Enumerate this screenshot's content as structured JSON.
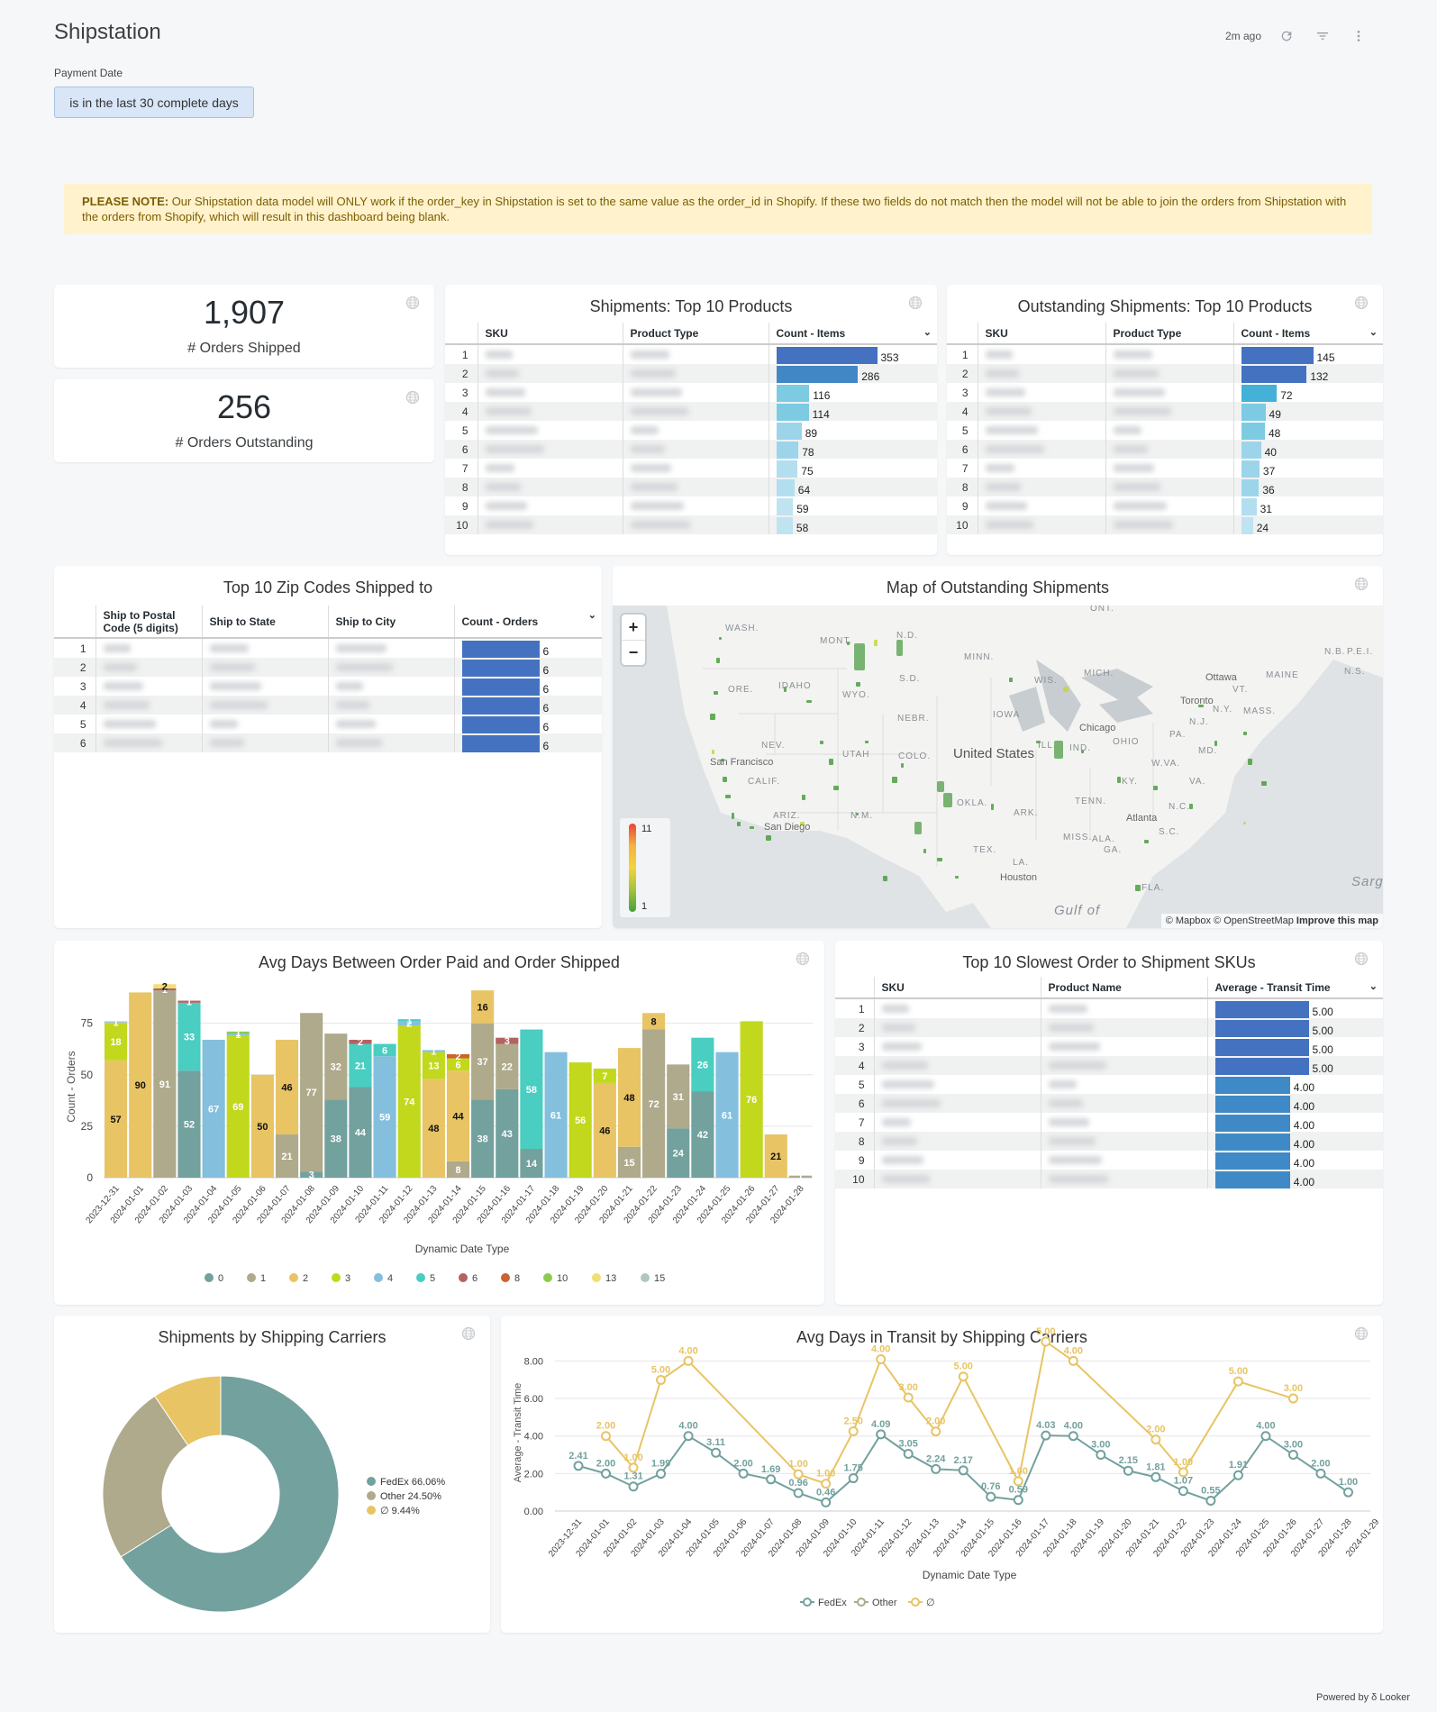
{
  "header": {
    "title": "Shipstation",
    "last_refreshed": "2m ago",
    "icons": [
      "refresh-icon",
      "filter-icon",
      "more-vert-icon"
    ]
  },
  "filters": {
    "payment_date": {
      "label": "Payment Date",
      "value": "is in the last 30 complete days"
    }
  },
  "note": {
    "bold": "PLEASE NOTE:",
    "text": " Our Shipstation data model will ONLY work if the order_key in Shipstation is set to the same value as the order_id in Shopify. If these two fields do not match then the model will not be able to join the orders from Shipstation with the orders from Shopify, which will result in this dashboard being blank."
  },
  "kpis": [
    {
      "value": "1,907",
      "label": "# Orders Shipped"
    },
    {
      "value": "256",
      "label": "# Orders Outstanding"
    }
  ],
  "shipments_top10": {
    "title": "Shipments: Top 10 Products",
    "columns": [
      "SKU",
      "Product Type",
      "Count - Items"
    ],
    "rows": [
      {
        "idx": "1",
        "value": 353
      },
      {
        "idx": "2",
        "value": 286
      },
      {
        "idx": "3",
        "value": 116
      },
      {
        "idx": "4",
        "value": 114
      },
      {
        "idx": "5",
        "value": 89
      },
      {
        "idx": "6",
        "value": 78
      },
      {
        "idx": "7",
        "value": 75
      },
      {
        "idx": "8",
        "value": 64
      },
      {
        "idx": "9",
        "value": 59
      },
      {
        "idx": "10",
        "value": 58
      }
    ]
  },
  "outstanding_top10": {
    "title": "Outstanding Shipments: Top 10 Products",
    "columns": [
      "SKU",
      "Product Type",
      "Count - Items"
    ],
    "rows": [
      {
        "idx": "1",
        "value": 145
      },
      {
        "idx": "2",
        "value": 132
      },
      {
        "idx": "3",
        "value": 72
      },
      {
        "idx": "4",
        "value": 49
      },
      {
        "idx": "5",
        "value": 48
      },
      {
        "idx": "6",
        "value": 40
      },
      {
        "idx": "7",
        "value": 37
      },
      {
        "idx": "8",
        "value": 36
      },
      {
        "idx": "9",
        "value": 31
      },
      {
        "idx": "10",
        "value": 24
      }
    ]
  },
  "zip_codes": {
    "title": "Top 10 Zip Codes Shipped to",
    "columns": [
      "Ship to Postal Code (5 digits)",
      "Ship to State",
      "Ship to City",
      "Count - Orders"
    ],
    "rows": [
      {
        "idx": "1",
        "value": 6
      },
      {
        "idx": "2",
        "value": 6
      },
      {
        "idx": "3",
        "value": 6
      },
      {
        "idx": "4",
        "value": 6
      },
      {
        "idx": "5",
        "value": 6
      },
      {
        "idx": "6",
        "value": 6
      }
    ]
  },
  "map": {
    "title": "Map of Outstanding Shipments",
    "zoom_in": "+",
    "zoom_out": "−",
    "legend_max": "11",
    "legend_min": "1",
    "country_label": "United States",
    "attribution": "© Mapbox © OpenStreetMap",
    "improve_link": "Improve this map",
    "state_labels": [
      "WASH.",
      "MONT.",
      "N.D.",
      "MINN.",
      "ORE.",
      "IDAHO",
      "WYO.",
      "S.D.",
      "WIS.",
      "MICH.",
      "NEBR.",
      "IOWA",
      "NEV.",
      "UTAH",
      "COLO.",
      "ILL.",
      "IND.",
      "OHIO",
      "PA.",
      "N.Y.",
      "MASS.",
      "MAINE",
      "VT.",
      "CALIF.",
      "KY.",
      "W.VA.",
      "VA.",
      "MD.",
      "N.J.",
      "ARIZ.",
      "N.M.",
      "OKLA.",
      "ARK.",
      "TENN.",
      "N.C.",
      "S.C.",
      "MISS.",
      "ALA.",
      "GA.",
      "TEX.",
      "LA.",
      "FLA.",
      "ONT.",
      "N.B.",
      "P.E.I.",
      "N.S."
    ],
    "cities": [
      "Ottawa",
      "Toronto",
      "Chicago",
      "San Francisco",
      "San Diego",
      "Atlanta",
      "Houston"
    ],
    "water_labels": [
      "Gulf of",
      "Sarg"
    ]
  },
  "chart_data": [
    {
      "type": "bar",
      "stacked": true,
      "title": "Avg Days Between Order Paid and Order Shipped",
      "xlabel": "Dynamic Date Type",
      "ylabel": "Count - Orders",
      "ylim": [
        0,
        95
      ],
      "yticks": [
        0,
        25,
        50,
        75
      ],
      "legend_position": "bottom",
      "categories": [
        "2023-12-31",
        "2024-01-01",
        "2024-01-02",
        "2024-01-03",
        "2024-01-04",
        "2024-01-05",
        "2024-01-06",
        "2024-01-07",
        "2024-01-08",
        "2024-01-09",
        "2024-01-10",
        "2024-01-11",
        "2024-01-12",
        "2024-01-13",
        "2024-01-14",
        "2024-01-15",
        "2024-01-16",
        "2024-01-17",
        "2024-01-18",
        "2024-01-19",
        "2024-01-20",
        "2024-01-21",
        "2024-01-22",
        "2024-01-23",
        "2024-01-24",
        "2024-01-25",
        "2024-01-26",
        "2024-01-27",
        "2024-01-28"
      ],
      "series": [
        {
          "name": "0",
          "color": "#72a19e",
          "values": [
            0,
            0,
            0,
            52,
            0,
            0,
            0,
            0,
            3,
            38,
            44,
            0,
            0,
            0,
            0,
            38,
            43,
            14,
            0,
            0,
            0,
            0,
            0,
            24,
            42,
            0,
            0,
            0,
            0
          ]
        },
        {
          "name": "1",
          "color": "#aeaa8b",
          "values": [
            0,
            0,
            91,
            0,
            0,
            0,
            0,
            21,
            77,
            32,
            0,
            0,
            0,
            0,
            8,
            37,
            22,
            0,
            0,
            0,
            0,
            15,
            72,
            31,
            0,
            0,
            0,
            0,
            1
          ]
        },
        {
          "name": "2",
          "color": "#e8c465",
          "values": [
            57,
            90,
            0,
            0,
            0,
            0,
            50,
            46,
            0,
            0,
            0,
            0,
            0,
            48,
            44,
            16,
            0,
            0,
            0,
            0,
            46,
            48,
            8,
            0,
            0,
            0,
            0,
            21,
            0
          ]
        },
        {
          "name": "3",
          "color": "#c1d81d",
          "values": [
            18,
            0,
            0,
            0,
            0,
            69,
            0,
            0,
            0,
            0,
            0,
            0,
            74,
            13,
            6,
            0,
            0,
            0,
            0,
            56,
            7,
            0,
            0,
            0,
            0,
            0,
            76,
            0,
            0
          ]
        },
        {
          "name": "4",
          "color": "#84bfdd",
          "values": [
            0,
            0,
            0,
            0,
            67,
            1,
            0,
            0,
            0,
            0,
            0,
            59,
            2,
            1,
            0,
            0,
            0,
            0,
            61,
            0,
            0,
            0,
            0,
            0,
            0,
            61,
            0,
            0,
            0
          ]
        },
        {
          "name": "5",
          "color": "#49cec1",
          "values": [
            0,
            0,
            0,
            33,
            0,
            0,
            0,
            0,
            0,
            0,
            21,
            6,
            1,
            0,
            0,
            0,
            0,
            58,
            0,
            0,
            0,
            0,
            0,
            0,
            26,
            0,
            0,
            0,
            0
          ]
        },
        {
          "name": "6",
          "color": "#b46261",
          "values": [
            0,
            0,
            1,
            1,
            0,
            0,
            0,
            0,
            0,
            0,
            2,
            0,
            0,
            0,
            0,
            0,
            3,
            0,
            0,
            0,
            0,
            0,
            0,
            0,
            0,
            0,
            0,
            0,
            0
          ]
        },
        {
          "name": "8",
          "color": "#cd6130",
          "values": [
            0,
            0,
            0,
            0,
            0,
            0,
            0,
            0,
            0,
            0,
            0,
            0,
            0,
            0,
            2,
            0,
            0,
            0,
            0,
            0,
            0,
            0,
            0,
            0,
            0,
            0,
            0,
            0,
            0
          ]
        },
        {
          "name": "10",
          "color": "#8bcc4d",
          "values": [
            0,
            0,
            0,
            0,
            0,
            1,
            0,
            0,
            0,
            0,
            0,
            0,
            0,
            0,
            0,
            0,
            0,
            0,
            0,
            0,
            0,
            0,
            0,
            0,
            0,
            0,
            0,
            0,
            0
          ]
        },
        {
          "name": "13",
          "color": "#f2df74",
          "values": [
            0,
            0,
            2,
            0,
            0,
            0,
            0,
            0,
            0,
            0,
            0,
            0,
            0,
            0,
            0,
            0,
            0,
            0,
            0,
            0,
            0,
            0,
            0,
            0,
            0,
            0,
            0,
            0,
            0
          ]
        },
        {
          "name": "15",
          "color": "#aec8c1",
          "values": [
            1,
            0,
            0,
            0,
            0,
            0,
            0,
            0,
            0,
            0,
            0,
            0,
            0,
            0,
            0,
            0,
            0,
            0,
            0,
            0,
            0,
            0,
            0,
            0,
            0,
            0,
            0,
            0,
            0
          ]
        }
      ]
    },
    {
      "type": "pie",
      "donut": true,
      "title": "Shipments by Shipping Carriers",
      "legend_position": "right",
      "slices": [
        {
          "label": "FedEx",
          "value": 66.06,
          "display": "FedEx 66.06%",
          "color": "#72a19e"
        },
        {
          "label": "Other",
          "value": 24.5,
          "display": "Other 24.50%",
          "color": "#aeaa8b"
        },
        {
          "label": "∅",
          "value": 9.44,
          "display": "∅ 9.44%",
          "color": "#e8c465"
        }
      ]
    },
    {
      "type": "line",
      "stacked": true,
      "title": "Avg Days in Transit by Shipping Carriers",
      "xlabel": "Dynamic Date Type",
      "ylabel": "Average - Transit Time",
      "ylim": [
        0,
        8.5
      ],
      "yticks": [
        "0.00",
        "2.00",
        "4.00",
        "6.00",
        "8.00"
      ],
      "legend_position": "bottom",
      "categories": [
        "2023-12-31",
        "2024-01-01",
        "2024-01-02",
        "2024-01-03",
        "2024-01-04",
        "2024-01-05",
        "2024-01-06",
        "2024-01-07",
        "2024-01-08",
        "2024-01-09",
        "2024-01-10",
        "2024-01-11",
        "2024-01-12",
        "2024-01-13",
        "2024-01-14",
        "2024-01-15",
        "2024-01-16",
        "2024-01-17",
        "2024-01-18",
        "2024-01-19",
        "2024-01-20",
        "2024-01-21",
        "2024-01-22",
        "2024-01-23",
        "2024-01-24",
        "2024-01-25",
        "2024-01-26",
        "2024-01-27",
        "2024-01-28",
        "2024-01-29"
      ],
      "series": [
        {
          "name": "FedEx",
          "color": "#72a19e",
          "values": [
            2.41,
            2.0,
            1.31,
            1.99,
            4.0,
            3.11,
            2.0,
            1.69,
            0.96,
            0.46,
            1.75,
            4.09,
            3.05,
            2.24,
            2.17,
            0.76,
            0.59,
            4.03,
            4.0,
            3.0,
            2.15,
            1.81,
            1.07,
            0.55,
            1.91,
            4.0,
            3.0,
            2.0,
            1.0,
            null
          ]
        },
        {
          "name": "Other",
          "color": "#aeaa8b",
          "values": [
            null,
            null,
            null,
            null,
            null,
            null,
            null,
            null,
            null,
            null,
            null,
            null,
            null,
            null,
            null,
            null,
            null,
            null,
            null,
            null,
            null,
            null,
            null,
            null,
            null,
            null,
            null,
            null,
            null,
            null
          ]
        },
        {
          "name": "∅",
          "color": "#e8c465",
          "values": [
            null,
            2.0,
            1.0,
            5.0,
            4.0,
            null,
            null,
            null,
            1.0,
            1.0,
            2.5,
            4.0,
            3.0,
            2.0,
            5.0,
            null,
            1.0,
            5.0,
            4.0,
            null,
            null,
            2.0,
            1.0,
            null,
            5.0,
            null,
            3.0,
            null,
            null,
            null
          ]
        }
      ]
    }
  ],
  "slowest_skus": {
    "title": "Top 10 Slowest Order to Shipment SKUs",
    "columns": [
      "SKU",
      "Product Name",
      "Average - Transit Time"
    ],
    "rows": [
      {
        "idx": "1",
        "value": 5.0,
        "display": "5.00"
      },
      {
        "idx": "2",
        "value": 5.0,
        "display": "5.00"
      },
      {
        "idx": "3",
        "value": 5.0,
        "display": "5.00"
      },
      {
        "idx": "4",
        "value": 5.0,
        "display": "5.00"
      },
      {
        "idx": "5",
        "value": 4.0,
        "display": "4.00"
      },
      {
        "idx": "6",
        "value": 4.0,
        "display": "4.00"
      },
      {
        "idx": "7",
        "value": 4.0,
        "display": "4.00"
      },
      {
        "idx": "8",
        "value": 4.0,
        "display": "4.00"
      },
      {
        "idx": "9",
        "value": 4.0,
        "display": "4.00"
      },
      {
        "idx": "10",
        "value": 4.0,
        "display": "4.00"
      }
    ]
  },
  "footer": {
    "text": "Powered by",
    "brand": "Looker"
  }
}
